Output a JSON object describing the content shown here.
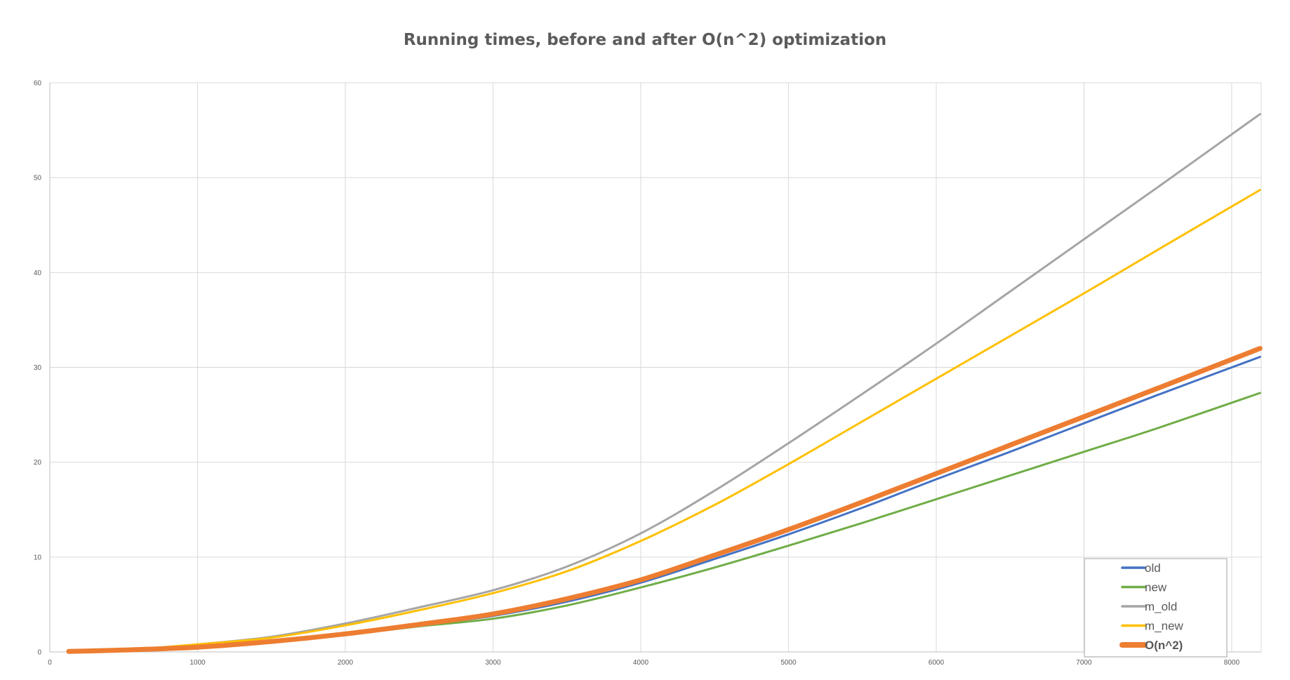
{
  "chart_data": {
    "type": "line",
    "title": "Running times, before and after O(n^2) optimization",
    "xlabel": "",
    "ylabel": "",
    "xlim": [
      0,
      8200
    ],
    "ylim": [
      0,
      60
    ],
    "x_ticks": [
      0,
      1000,
      2000,
      3000,
      4000,
      5000,
      6000,
      7000,
      8000
    ],
    "x_tick_labels": [
      "0",
      "1000",
      "2000",
      "3000",
      "4000",
      "5000",
      "6000",
      "7000",
      "8000"
    ],
    "y_ticks": [
      0,
      10,
      20,
      30,
      40,
      50,
      60
    ],
    "y_tick_labels": [
      "0",
      "10",
      "20",
      "30",
      "40",
      "50",
      "60"
    ],
    "grid": true,
    "legend_position": "bottom-right",
    "series": [
      {
        "name": "old",
        "color": "#4472c4",
        "x": [
          128,
          500,
          1000,
          1500,
          2000,
          2500,
          3000,
          3500,
          4000,
          4500,
          5000,
          5500,
          6000,
          6500,
          7000,
          7500,
          8192
        ],
        "values": [
          0.05,
          0.15,
          0.5,
          1.0,
          1.8,
          2.8,
          3.8,
          5.3,
          7.3,
          9.8,
          12.4,
          15.2,
          18.2,
          21.1,
          24.1,
          27.1,
          31.1
        ]
      },
      {
        "name": "new",
        "color": "#70ad47",
        "x": [
          128,
          500,
          1000,
          1500,
          2000,
          2500,
          3000,
          3500,
          4000,
          4500,
          5000,
          5500,
          6000,
          6500,
          7000,
          7500,
          8192
        ],
        "values": [
          0.05,
          0.15,
          0.5,
          1.0,
          1.8,
          2.7,
          3.5,
          4.9,
          6.8,
          8.9,
          11.2,
          13.6,
          16.1,
          18.6,
          21.1,
          23.6,
          27.3
        ]
      },
      {
        "name": "m_old",
        "color": "#a5a5a5",
        "x": [
          128,
          500,
          1000,
          1500,
          2000,
          2500,
          3000,
          3500,
          4000,
          4500,
          5000,
          5500,
          6000,
          6500,
          7000,
          7500,
          8192
        ],
        "values": [
          0.05,
          0.2,
          0.8,
          1.6,
          3.0,
          4.7,
          6.5,
          9.0,
          12.5,
          17.0,
          22.0,
          27.2,
          32.5,
          38.0,
          43.5,
          49.0,
          56.7
        ]
      },
      {
        "name": "m_new",
        "color": "#ffc000",
        "x": [
          128,
          500,
          1000,
          1500,
          2000,
          2500,
          3000,
          3500,
          4000,
          4500,
          5000,
          5500,
          6000,
          6500,
          7000,
          7500,
          8192
        ],
        "values": [
          0.05,
          0.2,
          0.8,
          1.5,
          2.8,
          4.4,
          6.2,
          8.5,
          11.7,
          15.5,
          19.8,
          24.3,
          28.8,
          33.3,
          37.8,
          42.4,
          48.7
        ]
      },
      {
        "name": "O(n^2)",
        "color": "#ed7d31",
        "x": [
          128,
          500,
          1000,
          1500,
          2000,
          2500,
          3000,
          3500,
          4000,
          4500,
          5000,
          5500,
          6000,
          6500,
          7000,
          7500,
          8192
        ],
        "values": [
          0.05,
          0.2,
          0.5,
          1.1,
          1.9,
          2.9,
          4.0,
          5.6,
          7.6,
          10.2,
          12.9,
          15.8,
          18.8,
          21.8,
          24.8,
          27.8,
          32.0
        ]
      }
    ]
  }
}
